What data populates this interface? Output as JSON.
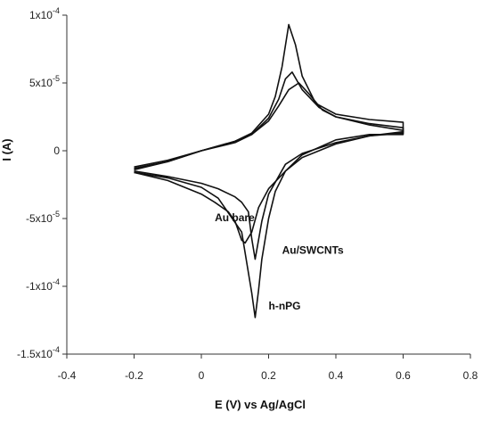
{
  "chart_data": {
    "type": "line",
    "title": "",
    "xlabel": "E (V) vs Ag/AgCl",
    "ylabel": "I (A)",
    "xlim": [
      -0.4,
      0.8
    ],
    "ylim": [
      -0.00015,
      0.0001
    ],
    "x_ticks": [
      -0.4,
      -0.2,
      0,
      0.2,
      0.4,
      0.6,
      0.8
    ],
    "x_tick_labels": [
      "-0.4",
      "-0.2",
      "0",
      "0.2",
      "0.4",
      "0.6",
      "0.8"
    ],
    "y_ticks": [
      0.0001,
      5e-05,
      0,
      -5e-05,
      -0.0001,
      -0.00015
    ],
    "y_tick_labels": [
      {
        "m": "1x10",
        "e": "-4"
      },
      {
        "m": "5x10",
        "e": "-5"
      },
      {
        "m": "0",
        "e": ""
      },
      {
        "m": "-5x10",
        "e": "-5"
      },
      {
        "m": "-1x10",
        "e": "-4"
      },
      {
        "m": "-1.5x10",
        "e": "-4"
      }
    ],
    "grid": false,
    "legend": "none",
    "line_color": "#111111",
    "annotations": [
      {
        "text": "Au bare",
        "x": 0.04,
        "y": -5.2e-05
      },
      {
        "text": "Au/SWCNTs",
        "x": 0.24,
        "y": -7.6e-05
      },
      {
        "text": "h-nPG",
        "x": 0.2,
        "y": -0.000117
      }
    ],
    "series": [
      {
        "x": [
          -0.2,
          -0.1,
          0.0,
          0.1,
          0.15,
          0.2,
          0.22,
          0.24,
          0.26,
          0.28,
          0.3,
          0.34,
          0.4,
          0.5,
          0.6,
          0.6,
          0.5,
          0.4,
          0.3,
          0.25,
          0.22,
          0.2,
          0.18,
          0.17,
          0.16,
          0.15,
          0.12,
          0.05,
          0.0,
          -0.1,
          -0.2
        ],
        "values": [
          -1.2e-05,
          -7e-06,
          0.0,
          7e-06,
          1.3e-05,
          2.7e-05,
          4e-05,
          6.2e-05,
          9.3e-05,
          7.8e-05,
          5.5e-05,
          3.5e-05,
          2.7e-05,
          2.3e-05,
          2.1e-05,
          1.2e-05,
          1.2e-05,
          8e-06,
          -3e-06,
          -1.5e-05,
          -3e-05,
          -5e-05,
          -8e-05,
          -0.000103,
          -0.000123,
          -0.000105,
          -6e-05,
          -3.5e-05,
          -2.7e-05,
          -2e-05,
          -1.6e-05
        ]
      },
      {
        "x": [
          -0.2,
          -0.1,
          0.0,
          0.1,
          0.15,
          0.2,
          0.23,
          0.25,
          0.27,
          0.3,
          0.35,
          0.4,
          0.5,
          0.6,
          0.6,
          0.5,
          0.4,
          0.3,
          0.25,
          0.2,
          0.18,
          0.16,
          0.15,
          0.14,
          0.12,
          0.1,
          0.05,
          0.0,
          -0.1,
          -0.2
        ],
        "values": [
          -1.3e-05,
          -8e-06,
          0.0,
          6e-06,
          1.2e-05,
          2.4e-05,
          3.8e-05,
          5.3e-05,
          5.8e-05,
          4.5e-05,
          3.2e-05,
          2.5e-05,
          2e-05,
          1.7e-05,
          1.3e-05,
          1.1e-05,
          6e-06,
          -2e-06,
          -1e-05,
          -3.2e-05,
          -5.2e-05,
          -8e-05,
          -6.5e-05,
          -4.5e-05,
          -3.8e-05,
          -3.4e-05,
          -2.8e-05,
          -2.4e-05,
          -1.9e-05,
          -1.5e-05
        ]
      },
      {
        "x": [
          -0.2,
          -0.1,
          0.0,
          0.1,
          0.15,
          0.2,
          0.23,
          0.26,
          0.29,
          0.32,
          0.36,
          0.4,
          0.5,
          0.6,
          0.6,
          0.5,
          0.4,
          0.3,
          0.25,
          0.2,
          0.17,
          0.15,
          0.13,
          0.12,
          0.1,
          0.08,
          0.04,
          0.0,
          -0.1,
          -0.2
        ],
        "values": [
          -1.4e-05,
          -8e-06,
          0.0,
          7e-06,
          1.2e-05,
          2.2e-05,
          3.3e-05,
          4.5e-05,
          5e-05,
          4.2e-05,
          3e-05,
          2.5e-05,
          1.9e-05,
          1.5e-05,
          1.4e-05,
          1.1e-05,
          5e-06,
          -5e-06,
          -1.5e-05,
          -2.8e-05,
          -4.2e-05,
          -6e-05,
          -6.8e-05,
          -6.6e-05,
          -5.2e-05,
          -4.5e-05,
          -3.8e-05,
          -3.2e-05,
          -2.2e-05,
          -1.6e-05
        ]
      }
    ]
  }
}
